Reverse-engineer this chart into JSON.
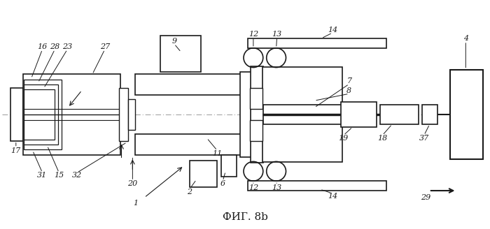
{
  "title": "ФИГ. 8b",
  "bg_color": "#ffffff",
  "line_color": "#1a1a1a",
  "centerline_color": "#999999",
  "fig_width": 7.0,
  "fig_height": 3.28,
  "dpi": 100
}
